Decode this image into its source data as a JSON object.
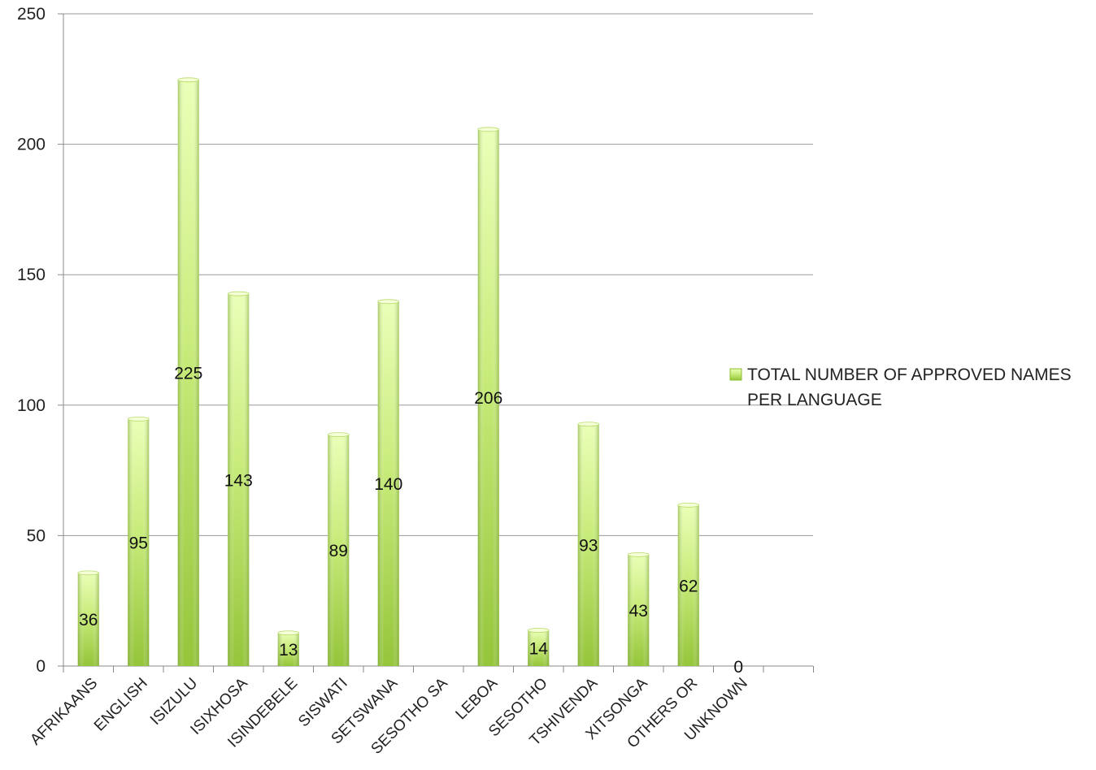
{
  "chart_data": {
    "type": "bar",
    "title": "",
    "xlabel": "",
    "ylabel": "",
    "categories": [
      "AFRIKAANS",
      "ENGLISH",
      "ISIZULU",
      "ISIXHOSA",
      "ISINDEBELE",
      "SISWATI",
      "SETSWANA",
      "SESOTHO SA",
      "LEBOA",
      "SESOTHO",
      "TSHIVENDA",
      "XITSONGA",
      "OTHERS OR",
      "UNKNOWN"
    ],
    "series": [
      {
        "name": "TOTAL NUMBER OF APPROVED NAMES PER LANGUAGE",
        "values": [
          36,
          95,
          225,
          143,
          13,
          89,
          140,
          null,
          206,
          14,
          93,
          43,
          62,
          0
        ],
        "data_labels": [
          "36",
          "95",
          "225",
          "143",
          "13",
          "89",
          "140",
          "",
          "206",
          "14",
          "93",
          "43",
          "62",
          "0"
        ]
      }
    ],
    "ylim": [
      0,
      250
    ],
    "yticks": [
      0,
      50,
      100,
      150,
      200,
      250
    ],
    "grid": true,
    "legend_position": "right",
    "bar_color": "#9ccc3c"
  }
}
